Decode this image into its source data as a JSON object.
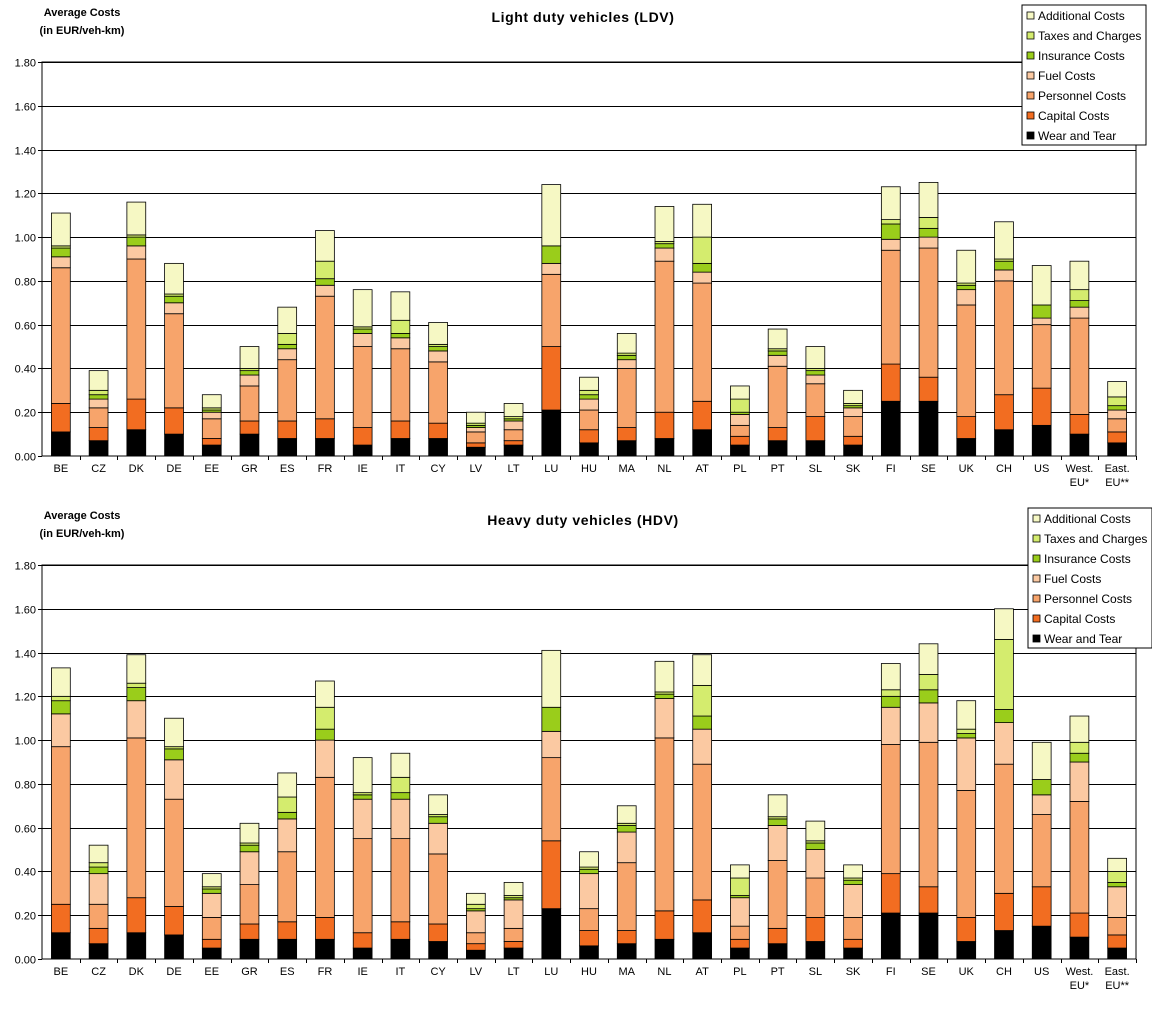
{
  "chart_data": [
    {
      "type": "bar",
      "stacked": true,
      "title": "Light duty vehicles (LDV)",
      "ylabel_lines": [
        "Average Costs",
        "(in EUR/veh-km)"
      ],
      "ylim": [
        0,
        1.8
      ],
      "yticks": [
        "0.00",
        "0.20",
        "0.40",
        "0.60",
        "0.80",
        "1.00",
        "1.20",
        "1.40",
        "1.60",
        "1.80"
      ],
      "grid": true,
      "legend_position": "top-right",
      "categories": [
        "BE",
        "CZ",
        "DK",
        "DE",
        "EE",
        "GR",
        "ES",
        "FR",
        "IE",
        "IT",
        "CY",
        "LV",
        "LT",
        "LU",
        "HU",
        "MA",
        "NL",
        "AT",
        "PL",
        "PT",
        "SL",
        "SK",
        "FI",
        "SE",
        "UK",
        "CH",
        "US",
        "West. EU*",
        "East. EU**"
      ],
      "category_label_lines": [
        [
          "BE"
        ],
        [
          "CZ"
        ],
        [
          "DK"
        ],
        [
          "DE"
        ],
        [
          "EE"
        ],
        [
          "GR"
        ],
        [
          "ES"
        ],
        [
          "FR"
        ],
        [
          "IE"
        ],
        [
          "IT"
        ],
        [
          "CY"
        ],
        [
          "LV"
        ],
        [
          "LT"
        ],
        [
          "LU"
        ],
        [
          "HU"
        ],
        [
          "MA"
        ],
        [
          "NL"
        ],
        [
          "AT"
        ],
        [
          "PL"
        ],
        [
          "PT"
        ],
        [
          "SL"
        ],
        [
          "SK"
        ],
        [
          "FI"
        ],
        [
          "SE"
        ],
        [
          "UK"
        ],
        [
          "CH"
        ],
        [
          "US"
        ],
        [
          "West.",
          "EU*"
        ],
        [
          "East.",
          "EU**"
        ]
      ],
      "series": [
        {
          "name": "Wear and Tear",
          "color": "#000000",
          "values": [
            0.11,
            0.07,
            0.12,
            0.1,
            0.05,
            0.1,
            0.08,
            0.08,
            0.05,
            0.08,
            0.08,
            0.04,
            0.05,
            0.21,
            0.06,
            0.07,
            0.08,
            0.12,
            0.05,
            0.07,
            0.07,
            0.05,
            0.25,
            0.25,
            0.08,
            0.12,
            0.14,
            0.1,
            0.06
          ]
        },
        {
          "name": "Capital Costs",
          "color": "#f26d21",
          "values": [
            0.13,
            0.06,
            0.14,
            0.12,
            0.03,
            0.06,
            0.08,
            0.09,
            0.08,
            0.08,
            0.07,
            0.02,
            0.02,
            0.29,
            0.06,
            0.06,
            0.12,
            0.13,
            0.04,
            0.06,
            0.11,
            0.04,
            0.17,
            0.11,
            0.1,
            0.16,
            0.17,
            0.09,
            0.05
          ]
        },
        {
          "name": "Personnel Costs",
          "color": "#f7a46b",
          "values": [
            0.62,
            0.09,
            0.64,
            0.43,
            0.09,
            0.16,
            0.28,
            0.56,
            0.37,
            0.33,
            0.28,
            0.05,
            0.05,
            0.33,
            0.09,
            0.27,
            0.69,
            0.54,
            0.05,
            0.28,
            0.15,
            0.09,
            0.52,
            0.59,
            0.51,
            0.52,
            0.29,
            0.44,
            0.06
          ]
        },
        {
          "name": "Fuel Costs",
          "color": "#fbc9a2",
          "values": [
            0.05,
            0.04,
            0.06,
            0.05,
            0.03,
            0.05,
            0.05,
            0.05,
            0.06,
            0.05,
            0.05,
            0.02,
            0.04,
            0.05,
            0.05,
            0.04,
            0.06,
            0.05,
            0.05,
            0.05,
            0.04,
            0.04,
            0.05,
            0.05,
            0.07,
            0.05,
            0.03,
            0.05,
            0.04
          ]
        },
        {
          "name": "Insurance Costs",
          "color": "#9acd1b",
          "values": [
            0.04,
            0.02,
            0.04,
            0.03,
            0.01,
            0.02,
            0.02,
            0.03,
            0.02,
            0.02,
            0.02,
            0.01,
            0.01,
            0.08,
            0.02,
            0.02,
            0.02,
            0.04,
            0.01,
            0.02,
            0.02,
            0.01,
            0.07,
            0.04,
            0.02,
            0.04,
            0.06,
            0.03,
            0.02
          ]
        },
        {
          "name": "Taxes and Charges",
          "color": "#d4ec6e",
          "values": [
            0.01,
            0.02,
            0.01,
            0.01,
            0.01,
            0.01,
            0.05,
            0.08,
            0.01,
            0.06,
            0.01,
            0.01,
            0.01,
            0.0,
            0.02,
            0.01,
            0.01,
            0.12,
            0.06,
            0.01,
            0.01,
            0.01,
            0.02,
            0.05,
            0.01,
            0.01,
            0.0,
            0.05,
            0.04
          ]
        },
        {
          "name": "Additional Costs",
          "color": "#f6f8c4",
          "values": [
            0.15,
            0.09,
            0.15,
            0.14,
            0.06,
            0.1,
            0.12,
            0.14,
            0.17,
            0.13,
            0.1,
            0.05,
            0.06,
            0.28,
            0.06,
            0.09,
            0.16,
            0.15,
            0.06,
            0.09,
            0.1,
            0.06,
            0.15,
            0.16,
            0.15,
            0.17,
            0.18,
            0.13,
            0.07
          ]
        }
      ]
    },
    {
      "type": "bar",
      "stacked": true,
      "title": "Heavy duty vehicles (HDV)",
      "ylabel_lines": [
        "Average Costs",
        "(in EUR/veh-km)"
      ],
      "ylim": [
        0,
        1.8
      ],
      "yticks": [
        "0.00",
        "0.20",
        "0.40",
        "0.60",
        "0.80",
        "1.00",
        "1.20",
        "1.40",
        "1.60",
        "1.80"
      ],
      "grid": true,
      "legend_position": "top-right",
      "categories": [
        "BE",
        "CZ",
        "DK",
        "DE",
        "EE",
        "GR",
        "ES",
        "FR",
        "IE",
        "IT",
        "CY",
        "LV",
        "LT",
        "LU",
        "HU",
        "MA",
        "NL",
        "AT",
        "PL",
        "PT",
        "SL",
        "SK",
        "FI",
        "SE",
        "UK",
        "CH",
        "US",
        "West. EU*",
        "East. EU**"
      ],
      "category_label_lines": [
        [
          "BE"
        ],
        [
          "CZ"
        ],
        [
          "DK"
        ],
        [
          "DE"
        ],
        [
          "EE"
        ],
        [
          "GR"
        ],
        [
          "ES"
        ],
        [
          "FR"
        ],
        [
          "IE"
        ],
        [
          "IT"
        ],
        [
          "CY"
        ],
        [
          "LV"
        ],
        [
          "LT"
        ],
        [
          "LU"
        ],
        [
          "HU"
        ],
        [
          "MA"
        ],
        [
          "NL"
        ],
        [
          "AT"
        ],
        [
          "PL"
        ],
        [
          "PT"
        ],
        [
          "SL"
        ],
        [
          "SK"
        ],
        [
          "FI"
        ],
        [
          "SE"
        ],
        [
          "UK"
        ],
        [
          "CH"
        ],
        [
          "US"
        ],
        [
          "West.",
          "EU*"
        ],
        [
          "East.",
          "EU**"
        ]
      ],
      "series": [
        {
          "name": "Wear and Tear",
          "color": "#000000",
          "values": [
            0.12,
            0.07,
            0.12,
            0.11,
            0.05,
            0.09,
            0.09,
            0.09,
            0.05,
            0.09,
            0.08,
            0.04,
            0.05,
            0.23,
            0.06,
            0.07,
            0.09,
            0.12,
            0.05,
            0.07,
            0.08,
            0.05,
            0.21,
            0.21,
            0.08,
            0.13,
            0.15,
            0.1,
            0.05
          ]
        },
        {
          "name": "Capital Costs",
          "color": "#f26d21",
          "values": [
            0.13,
            0.07,
            0.16,
            0.13,
            0.04,
            0.07,
            0.08,
            0.1,
            0.07,
            0.08,
            0.08,
            0.03,
            0.03,
            0.31,
            0.07,
            0.06,
            0.13,
            0.15,
            0.04,
            0.07,
            0.11,
            0.04,
            0.18,
            0.12,
            0.11,
            0.17,
            0.18,
            0.11,
            0.06
          ]
        },
        {
          "name": "Personnel Costs",
          "color": "#f7a46b",
          "values": [
            0.72,
            0.11,
            0.73,
            0.49,
            0.1,
            0.18,
            0.32,
            0.64,
            0.43,
            0.38,
            0.32,
            0.05,
            0.06,
            0.38,
            0.1,
            0.31,
            0.79,
            0.62,
            0.06,
            0.31,
            0.18,
            0.1,
            0.59,
            0.66,
            0.58,
            0.59,
            0.33,
            0.51,
            0.08
          ]
        },
        {
          "name": "Fuel Costs",
          "color": "#fbc9a2",
          "values": [
            0.15,
            0.14,
            0.17,
            0.18,
            0.11,
            0.15,
            0.15,
            0.17,
            0.18,
            0.18,
            0.14,
            0.1,
            0.13,
            0.12,
            0.16,
            0.14,
            0.18,
            0.16,
            0.13,
            0.16,
            0.13,
            0.15,
            0.17,
            0.18,
            0.24,
            0.19,
            0.09,
            0.18,
            0.14
          ]
        },
        {
          "name": "Insurance Costs",
          "color": "#9acd1b",
          "values": [
            0.06,
            0.03,
            0.06,
            0.05,
            0.02,
            0.03,
            0.03,
            0.05,
            0.02,
            0.03,
            0.03,
            0.01,
            0.01,
            0.11,
            0.02,
            0.03,
            0.02,
            0.06,
            0.01,
            0.03,
            0.03,
            0.02,
            0.05,
            0.06,
            0.02,
            0.06,
            0.07,
            0.04,
            0.02
          ]
        },
        {
          "name": "Taxes and Charges",
          "color": "#d4ec6e",
          "values": [
            0.02,
            0.02,
            0.02,
            0.01,
            0.01,
            0.01,
            0.07,
            0.1,
            0.01,
            0.07,
            0.01,
            0.02,
            0.01,
            0.0,
            0.01,
            0.01,
            0.01,
            0.14,
            0.08,
            0.01,
            0.01,
            0.01,
            0.03,
            0.07,
            0.02,
            0.32,
            0.0,
            0.05,
            0.05
          ]
        },
        {
          "name": "Additional Costs",
          "color": "#f6f8c4",
          "values": [
            0.13,
            0.08,
            0.13,
            0.13,
            0.06,
            0.09,
            0.11,
            0.12,
            0.16,
            0.11,
            0.09,
            0.05,
            0.06,
            0.26,
            0.07,
            0.08,
            0.14,
            0.14,
            0.06,
            0.1,
            0.09,
            0.06,
            0.12,
            0.14,
            0.13,
            0.14,
            0.17,
            0.12,
            0.06
          ]
        }
      ]
    }
  ]
}
